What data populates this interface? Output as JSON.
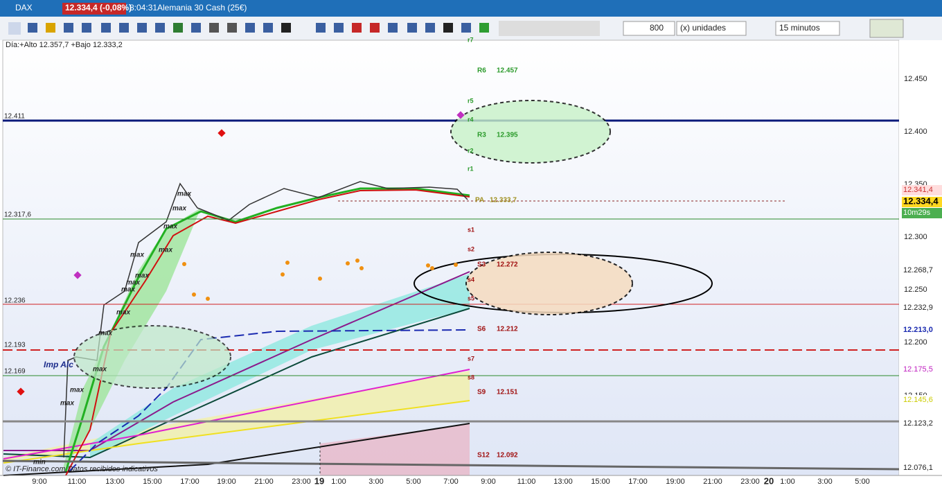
{
  "toolbar": {
    "symbol": "DAX",
    "price_badge": "12.334,4 (-0,08%)",
    "time": "8:04:31",
    "instrument": "Alemania 30 Cash (25€)"
  },
  "controls": {
    "quantity": "800",
    "units": "(x) unidades",
    "timeframe": "15 minutos"
  },
  "chart": {
    "info": "Día:+Alto 12.357,7 +Bajo 12.333,2",
    "left_labels": [
      "12.411",
      "12.317,6",
      "12.236",
      "12.193",
      "12.169"
    ],
    "pivots": [
      {
        "name": "R6",
        "value": "12.457"
      },
      {
        "name": "R3",
        "value": "12.395"
      },
      {
        "name": "PA",
        "value": "12.333,7"
      },
      {
        "name": "S3",
        "value": "12.272"
      },
      {
        "name": "S6",
        "value": "12.212"
      },
      {
        "name": "S9",
        "value": "12.151"
      },
      {
        "name": "S12",
        "value": "12.092"
      }
    ],
    "minor_levels": [
      "r7",
      "r5",
      "r4",
      "r2",
      "r1",
      "s1",
      "s2",
      "s4",
      "s5",
      "s7",
      "s8"
    ],
    "annotations": {
      "imp": "Imp Alc",
      "min": "min",
      "max": "max"
    },
    "yticks": [
      "12.450",
      "12.400",
      "12.350",
      "12.300",
      "12.250",
      "12.200",
      "12.150"
    ],
    "right_badges": [
      "12.341,4",
      "12.334,4",
      "10m29s",
      "12.268,7",
      "12.232,9",
      "12.213,0",
      "12.175,5",
      "12.145,6",
      "12.123,2",
      "12.076,1"
    ],
    "xticks": [
      "9:00",
      "11:00",
      "13:00",
      "15:00",
      "17:00",
      "19:00",
      "21:00",
      "23:00",
      "19",
      "1:00",
      "3:00",
      "5:00",
      "7:00",
      "9:00",
      "11:00",
      "13:00",
      "15:00",
      "17:00",
      "19:00",
      "21:00",
      "23:00",
      "20",
      "1:00",
      "3:00",
      "5:00"
    ],
    "footer": "© IT-Finance.com Datos recibidos indicativos"
  }
}
